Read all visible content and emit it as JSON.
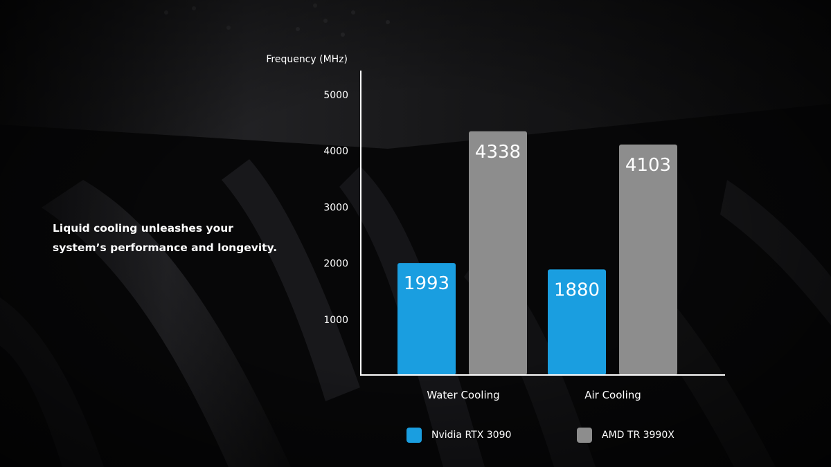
{
  "tagline": {
    "line1": "Liquid cooling unleashes your",
    "line2": "system’s performance and longevity."
  },
  "chart_data": {
    "type": "bar",
    "title": "",
    "ylabel": "Frequency (MHz)",
    "xlabel": "",
    "categories": [
      "Water Cooling",
      "Air Cooling"
    ],
    "series": [
      {
        "name": "Nvidia RTX 3090",
        "values": [
          1993,
          1880
        ],
        "color": "#1a9ee0"
      },
      {
        "name": "AMD TR 3990X",
        "values": [
          4338,
          4103
        ],
        "color": "#8d8d8d"
      }
    ],
    "ylim": [
      0,
      5000
    ],
    "yticks": [
      1000,
      2000,
      3000,
      4000,
      5000
    ],
    "grid": false,
    "legend_position": "bottom"
  }
}
